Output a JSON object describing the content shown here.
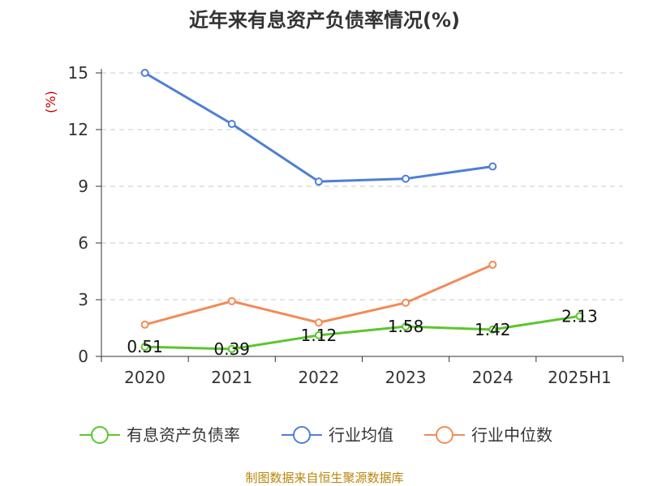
{
  "chart_data": {
    "type": "line",
    "title": "近年来有息资产负债率情况(%)",
    "ylabel": "(%)",
    "xlabel": "",
    "categories": [
      "2020",
      "2021",
      "2022",
      "2023",
      "2024",
      "2025H1"
    ],
    "ylim": [
      0,
      15
    ],
    "yticks": [
      0,
      3,
      6,
      9,
      12,
      15
    ],
    "grid": "horizontal-dashed",
    "legend_position": "bottom",
    "series": [
      {
        "name": "有息资产负债率",
        "color": "#5cc62f",
        "values": [
          0.51,
          0.39,
          1.12,
          1.58,
          1.42,
          2.13
        ],
        "labels": [
          "0.51",
          "0.39",
          "1.12",
          "1.58",
          "1.42",
          "2.13"
        ]
      },
      {
        "name": "行业均值",
        "color": "#4f7fd6",
        "values": [
          15.0,
          12.3,
          9.25,
          9.4,
          10.05,
          null
        ]
      },
      {
        "name": "行业中位数",
        "color": "#f28b58",
        "values": [
          1.68,
          2.92,
          1.79,
          2.84,
          4.85,
          null
        ]
      }
    ],
    "source": "制图数据来自恒生聚源数据库"
  }
}
